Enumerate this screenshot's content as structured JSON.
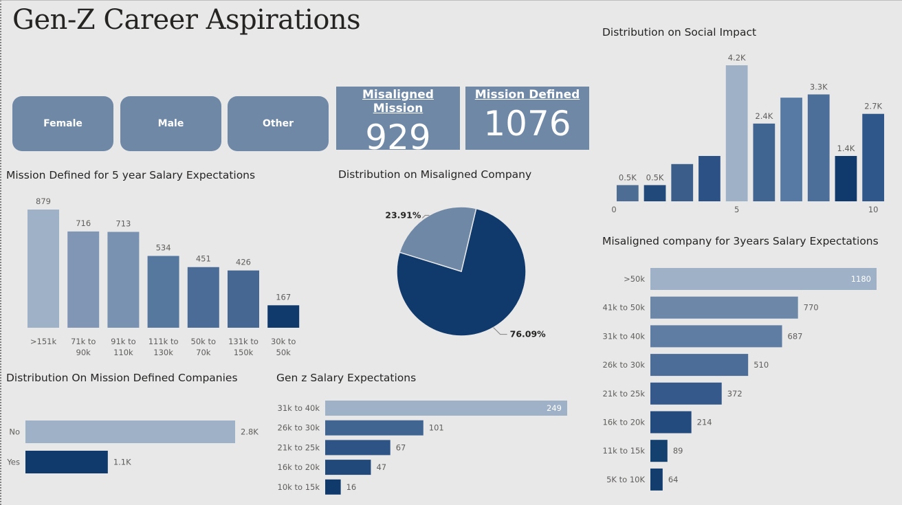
{
  "page": {
    "title": "Gen-Z Career Aspirations"
  },
  "slicers": [
    "Female",
    "Male",
    "Other"
  ],
  "cards": [
    {
      "label": "Misaligned Mission",
      "value": "929"
    },
    {
      "label": "Mission Defined",
      "value": "1076"
    }
  ],
  "colors": {
    "background": "#e8e8e8",
    "card": "#6f88a6",
    "dark": "#103a6b",
    "light": "#9fb1c7"
  },
  "chart_data": [
    {
      "id": "social",
      "type": "bar",
      "title": "Distribution on Social Impact",
      "x": [
        1,
        2,
        3,
        4,
        5,
        6,
        7,
        8,
        9,
        10
      ],
      "values": [
        500,
        500,
        1150,
        1400,
        4200,
        2400,
        3200,
        3300,
        1400,
        2700
      ],
      "data_labels": [
        "0.5K",
        "0.5K",
        "",
        "",
        "4.2K",
        "2.4K",
        "",
        "3.3K",
        "1.4K",
        "2.7K"
      ],
      "x_ticks": [
        "0",
        "5",
        "10"
      ],
      "xlim": [
        0,
        10
      ],
      "colors": [
        "#4e6d94",
        "#21497a",
        "#3b5d89",
        "#2c5285",
        "#9fb1c7",
        "#416591",
        "#567aa3",
        "#4c6f99",
        "#103a6b",
        "#30578a"
      ]
    },
    {
      "id": "mission_salary",
      "type": "bar",
      "title": "Mission Defined for 5 year Salary Expectations",
      "categories": [
        ">151k",
        "71k to 90k",
        "91k to 110k",
        "111k to 130k",
        "50k to 70k",
        "131k to 150k",
        "30k to 50k"
      ],
      "category_lines": [
        [
          ">151k"
        ],
        [
          "71k to",
          "90k"
        ],
        [
          "91k to",
          "110k"
        ],
        [
          "111k to",
          "130k"
        ],
        [
          "50k to",
          "70k"
        ],
        [
          "131k to",
          "150k"
        ],
        [
          "30k to",
          "50k"
        ]
      ],
      "values": [
        879,
        716,
        713,
        534,
        451,
        426,
        167
      ],
      "colors": [
        "#9fb1c7",
        "#8196b5",
        "#7a92b1",
        "#56779e",
        "#4b6c96",
        "#456791",
        "#103a6b"
      ]
    },
    {
      "id": "misaligned_pie",
      "type": "pie",
      "title": "Distribution on Misaligned Company",
      "slices": [
        {
          "label": "76.09%",
          "value": 76.09,
          "color": "#103a6b"
        },
        {
          "label": "23.91%",
          "value": 23.91,
          "color": "#6f88a6"
        }
      ]
    },
    {
      "id": "misaligned_salary",
      "type": "bar",
      "orientation": "horizontal",
      "title": "Misaligned company for 3years Salary Expectations",
      "categories": [
        ">50k",
        "41k to 50k",
        "31k to 40k",
        "26k to 30k",
        "21k to 25k",
        "16k to 20k",
        "11k to 15k",
        "5K to 10K"
      ],
      "values": [
        1180,
        770,
        687,
        510,
        372,
        214,
        89,
        64
      ],
      "colors": [
        "#9fb1c7",
        "#6d87a9",
        "#5f7da3",
        "#4c6d98",
        "#34598a",
        "#234b7d",
        "#14406f",
        "#123d6c"
      ]
    },
    {
      "id": "mission_companies",
      "type": "bar",
      "orientation": "horizontal",
      "title": "Distribution On Mission Defined Companies",
      "categories": [
        "No",
        "Yes"
      ],
      "values": [
        2800,
        1100
      ],
      "data_labels": [
        "2.8K",
        "1.1K"
      ],
      "colors": [
        "#9fb1c7",
        "#103a6b"
      ]
    },
    {
      "id": "genz_salary",
      "type": "bar",
      "orientation": "horizontal",
      "title": "Gen z Salary Expectations",
      "categories": [
        "31k to 40k",
        "26k to 30k",
        "21k to 25k",
        "16k to 20k",
        "10k to 15k"
      ],
      "values": [
        249,
        101,
        67,
        47,
        16
      ],
      "colors": [
        "#9fb1c7",
        "#416591",
        "#2d5485",
        "#21497a",
        "#103a6b"
      ]
    }
  ]
}
